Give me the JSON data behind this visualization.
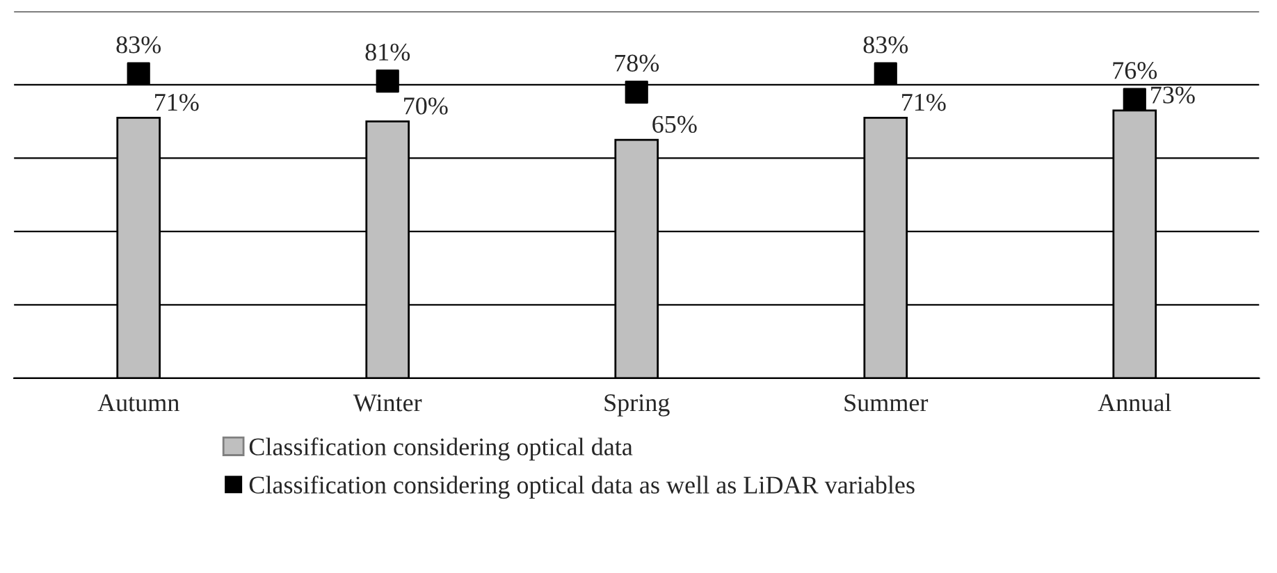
{
  "chart_data": {
    "type": "bar",
    "categories": [
      "Autumn",
      "Winter",
      "Spring",
      "Summer",
      "Annual"
    ],
    "series": [
      {
        "name": "Classification considering optical data",
        "type": "bar",
        "color": "#bfbfbf",
        "values": [
          71,
          70,
          65,
          71,
          73
        ],
        "value_labels": [
          "71%",
          "70%",
          "65%",
          "71%",
          "73%"
        ]
      },
      {
        "name": "Classification considering optical data as well as LiDAR variables",
        "type": "scatter",
        "color": "#000000",
        "values": [
          83,
          81,
          78,
          83,
          76
        ],
        "value_labels": [
          "83%",
          "81%",
          "78%",
          "83%",
          "76%"
        ]
      }
    ],
    "ylim": [
      0,
      100
    ],
    "yticks": [
      {
        "value": 0,
        "label": null
      },
      {
        "value": 20,
        "label": null
      },
      {
        "value": 40,
        "label": null
      },
      {
        "value": 60,
        "label": null
      },
      {
        "value": 80,
        "label": null
      },
      {
        "value": 100,
        "label": null
      }
    ],
    "tick_labels": "x",
    "grid": "y",
    "legend": "bottom",
    "marker": "square"
  }
}
